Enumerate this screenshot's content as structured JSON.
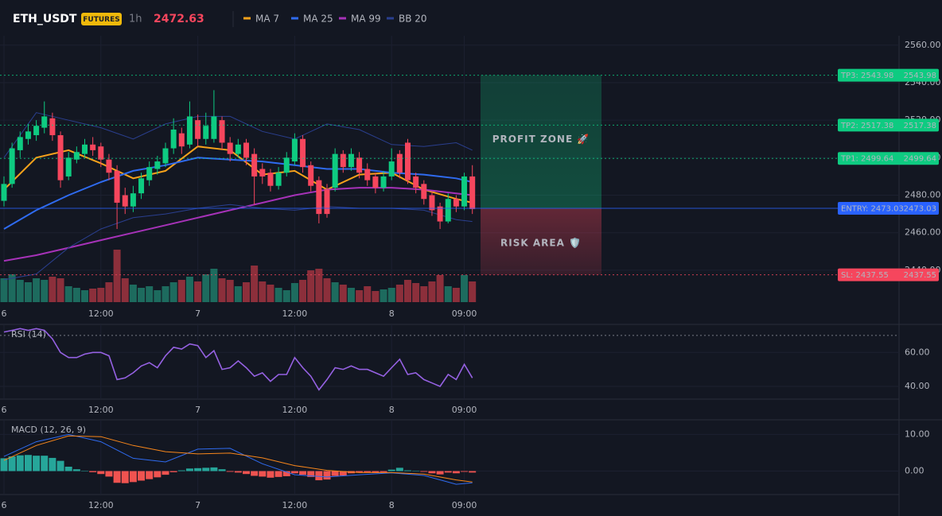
{
  "header": {
    "symbol": "ETH_USDT",
    "badge": "FUTURES",
    "interval": "1h",
    "price": 2472.63
  },
  "trade": {
    "profit_label": "PROFIT ZONE 🚀",
    "risk_label": "RISK AREA 🛡️",
    "levels": [
      {
        "label": "TP3: 2543.98",
        "value": 2543.98,
        "color": "#0ecb81",
        "style": "dotted"
      },
      {
        "label": "TP2: 2517.38",
        "value": 2517.38,
        "color": "#0ecb81",
        "style": "dotted"
      },
      {
        "label": "TP1: 2499.64",
        "value": 2499.64,
        "color": "#0ecb81",
        "style": "dotted"
      },
      {
        "label": "ENTRY: 2473.03",
        "value": 2473.03,
        "color": "#2962ff",
        "style": "solid"
      },
      {
        "label": "SL: 2437.55",
        "value": 2437.55,
        "color": "#f6465d",
        "style": "dotted"
      }
    ]
  },
  "chart_data": [
    {
      "type": "candlestick",
      "categories": [
        "6",
        null,
        null,
        null,
        null,
        null,
        null,
        null,
        null,
        null,
        null,
        null,
        "12:00",
        null,
        null,
        null,
        null,
        null,
        null,
        null,
        null,
        null,
        null,
        null,
        "7",
        null,
        null,
        null,
        null,
        null,
        null,
        null,
        null,
        null,
        null,
        null,
        "12:00",
        null,
        null,
        null,
        null,
        null,
        null,
        null,
        null,
        null,
        null,
        null,
        "8",
        null,
        null,
        null,
        null,
        null,
        null,
        null,
        null,
        "09:00",
        null
      ],
      "open": [
        2477,
        2486,
        2504,
        2510,
        2512,
        2516,
        2521,
        2512,
        2490,
        2499,
        2502,
        2507,
        2506,
        2499,
        2493,
        2480,
        2474,
        2481,
        2488,
        2494,
        2497,
        2505,
        2513,
        2507,
        2520,
        2510,
        2510,
        2520,
        2508,
        2502,
        2508,
        2502,
        2494,
        2492,
        2485,
        2492,
        2498,
        2510,
        2496,
        2488,
        2483,
        2484,
        2502,
        2495,
        2500,
        2494,
        2490,
        2484,
        2490,
        2502,
        2508,
        2490,
        2486,
        2480,
        2474,
        2466,
        2478,
        2474,
        2490
      ],
      "high": [
        2490,
        2508,
        2514,
        2518,
        2520,
        2530,
        2524,
        2514,
        2503,
        2506,
        2510,
        2511,
        2508,
        2502,
        2496,
        2484,
        2485,
        2492,
        2498,
        2501,
        2508,
        2521,
        2516,
        2530,
        2523,
        2524,
        2536,
        2522,
        2511,
        2510,
        2510,
        2505,
        2497,
        2494,
        2495,
        2503,
        2513,
        2512,
        2498,
        2490,
        2486,
        2505,
        2504,
        2505,
        2503,
        2497,
        2492,
        2493,
        2505,
        2504,
        2510,
        2492,
        2488,
        2482,
        2476,
        2481,
        2480,
        2492,
        2496
      ],
      "low": [
        2474,
        2484,
        2500,
        2507,
        2509,
        2513,
        2509,
        2484,
        2488,
        2497,
        2500,
        2501,
        2495,
        2488,
        2462,
        2470,
        2471,
        2478,
        2485,
        2491,
        2495,
        2502,
        2502,
        2505,
        2506,
        2507,
        2508,
        2504,
        2498,
        2500,
        2496,
        2475,
        2486,
        2482,
        2483,
        2490,
        2496,
        2492,
        2482,
        2465,
        2468,
        2482,
        2492,
        2493,
        2489,
        2485,
        2481,
        2482,
        2488,
        2489,
        2486,
        2481,
        2475,
        2469,
        2462,
        2465,
        2471,
        2472,
        2470
      ],
      "close": [
        2486,
        2505,
        2511,
        2514,
        2517,
        2522,
        2512,
        2488,
        2500,
        2503,
        2507,
        2504,
        2499,
        2492,
        2476,
        2474,
        2481,
        2489,
        2495,
        2498,
        2505,
        2515,
        2506,
        2522,
        2510,
        2517,
        2522,
        2508,
        2502,
        2507,
        2500,
        2490,
        2490,
        2485,
        2492,
        2500,
        2510,
        2495,
        2485,
        2470,
        2470,
        2502,
        2495,
        2502,
        2492,
        2488,
        2484,
        2490,
        2498,
        2492,
        2488,
        2484,
        2478,
        2472,
        2466,
        2478,
        2474,
        2490,
        2472.63
      ],
      "volume": [
        30,
        35,
        28,
        25,
        30,
        28,
        32,
        30,
        20,
        18,
        15,
        17,
        18,
        25,
        66,
        30,
        22,
        18,
        20,
        15,
        20,
        25,
        28,
        32,
        26,
        35,
        42,
        30,
        28,
        20,
        25,
        46,
        26,
        22,
        18,
        15,
        24,
        28,
        40,
        42,
        30,
        25,
        22,
        18,
        15,
        20,
        14,
        16,
        18,
        22,
        28,
        24,
        20,
        26,
        34,
        20,
        18,
        34,
        26
      ],
      "up_color": "#0ecb81",
      "down_color": "#f6465d",
      "volume_up_color": "#1d6b5e",
      "volume_down_color": "#8c2f3b",
      "ylim": [
        2423,
        2565
      ],
      "yticks": [
        {
          "value": 2440,
          "label": "2440.00"
        },
        {
          "value": 2460,
          "label": "2460.00"
        },
        {
          "value": 2480,
          "label": "2480.00"
        },
        {
          "value": 2500,
          "label": "2500.00"
        },
        {
          "value": 2520,
          "label": "2520.00"
        },
        {
          "value": 2540,
          "label": "2540.00"
        },
        {
          "value": 2560,
          "label": "2560.00"
        }
      ],
      "grid": true,
      "lines": [
        {
          "name": "MA 7",
          "color": "#f7a21b",
          "x": [
            0,
            4,
            8,
            12,
            16,
            20,
            24,
            28,
            32,
            36,
            40,
            44,
            48,
            52,
            56,
            58
          ],
          "values": [
            2483,
            2500,
            2504,
            2497,
            2489,
            2493,
            2506,
            2504,
            2491,
            2493,
            2483,
            2491,
            2492,
            2483,
            2478,
            2476
          ]
        },
        {
          "name": "MA 25",
          "color": "#2f6bf0",
          "x": [
            0,
            4,
            8,
            12,
            16,
            20,
            24,
            28,
            32,
            36,
            40,
            44,
            48,
            52,
            56,
            58
          ],
          "values": [
            2462,
            2472,
            2480,
            2487,
            2493,
            2496,
            2500,
            2499,
            2498,
            2496,
            2494,
            2494,
            2492,
            2491,
            2489,
            2487
          ]
        },
        {
          "name": "MA 99",
          "color": "#a632b8",
          "x": [
            0,
            4,
            8,
            12,
            16,
            20,
            24,
            28,
            32,
            36,
            40,
            44,
            48,
            52,
            56,
            58
          ],
          "values": [
            2445,
            2448,
            2452,
            2456,
            2460,
            2464,
            2468,
            2472,
            2476,
            2480,
            2483,
            2484,
            2484,
            2483,
            2481,
            2480
          ]
        },
        {
          "name": "BB 20",
          "color": "#2a3f8f",
          "x": [
            0,
            4,
            8,
            12,
            16,
            20,
            24,
            28,
            32,
            36,
            40,
            44,
            48,
            52,
            56,
            58
          ],
          "upper": [
            2500,
            2524,
            2520,
            2516,
            2510,
            2518,
            2522,
            2522,
            2514,
            2510,
            2518,
            2515,
            2507,
            2506,
            2508,
            2504
          ],
          "lower": [
            2435,
            2438,
            2452,
            2462,
            2468,
            2470,
            2473,
            2475,
            2473,
            2472,
            2474,
            2473,
            2473,
            2472,
            2467,
            2466
          ]
        }
      ]
    },
    {
      "type": "line",
      "title": "RSI (14)",
      "color": "#9561e2",
      "values": [
        72,
        73,
        74,
        73,
        74,
        73,
        68,
        60,
        57,
        57,
        59,
        60,
        60,
        58,
        44,
        45,
        48,
        52,
        54,
        51,
        58,
        63,
        62,
        65,
        64,
        57,
        61,
        50,
        51,
        55,
        51,
        46,
        48,
        43,
        47,
        47,
        57,
        51,
        46,
        38,
        44,
        51,
        50,
        52,
        50,
        50,
        48,
        46,
        51,
        56,
        47,
        48,
        44,
        42,
        40,
        47,
        44,
        53,
        45
      ],
      "ylim": [
        32.5,
        76.5
      ],
      "yticks": [
        {
          "value": 40,
          "label": "40.00"
        },
        {
          "value": 60,
          "label": "60.00"
        }
      ],
      "overbought": 70,
      "grid": true
    },
    {
      "type": "macd",
      "title": "MACD (12, 26, 9)",
      "histogram": [
        3.5,
        4,
        4.3,
        4.4,
        4.2,
        4.2,
        3.6,
        2.8,
        1.2,
        0.5,
        0.1,
        -0.3,
        -0.8,
        -1.5,
        -3.2,
        -3.3,
        -3,
        -2.6,
        -2.2,
        -1.7,
        -1,
        -0.3,
        0.2,
        0.7,
        0.8,
        0.9,
        1,
        0.5,
        -0.2,
        -0.4,
        -0.8,
        -1.3,
        -1.5,
        -1.8,
        -1.6,
        -1.4,
        -0.6,
        -1,
        -1.6,
        -2.5,
        -2.3,
        -1.3,
        -1.2,
        -0.6,
        -0.4,
        -0.4,
        -0.5,
        -0.3,
        0.4,
        0.9,
        0.2,
        0.1,
        -0.2,
        -0.6,
        -0.9,
        -0.4,
        -0.6,
        -0.2,
        -0.4
      ],
      "up_color": "#26a69a",
      "down_color": "#ef5350",
      "macd": {
        "color": "#2f6bf0",
        "x": [
          0,
          4,
          8,
          12,
          16,
          20,
          24,
          28,
          32,
          36,
          40,
          44,
          48,
          52,
          56,
          58
        ],
        "values": [
          4,
          8,
          10,
          8,
          3.5,
          2.5,
          6,
          6.2,
          2,
          -1,
          -1.6,
          -1,
          -0.5,
          -1.2,
          -3.6,
          -3.2
        ]
      },
      "signal": {
        "color": "#f7861b",
        "x": [
          0,
          4,
          8,
          12,
          16,
          20,
          24,
          28,
          32,
          36,
          40,
          44,
          48,
          52,
          56,
          58
        ],
        "values": [
          2.9,
          7,
          9.6,
          9.4,
          7,
          5.3,
          4.7,
          4.9,
          3.6,
          1.5,
          0.2,
          -0.4,
          -0.4,
          -0.8,
          -2.4,
          -3
        ]
      },
      "ylim": [
        -6.4,
        14
      ],
      "yticks": [
        {
          "value": 0,
          "label": "0.00"
        },
        {
          "value": 10,
          "label": "10.00"
        }
      ],
      "grid": true
    }
  ]
}
